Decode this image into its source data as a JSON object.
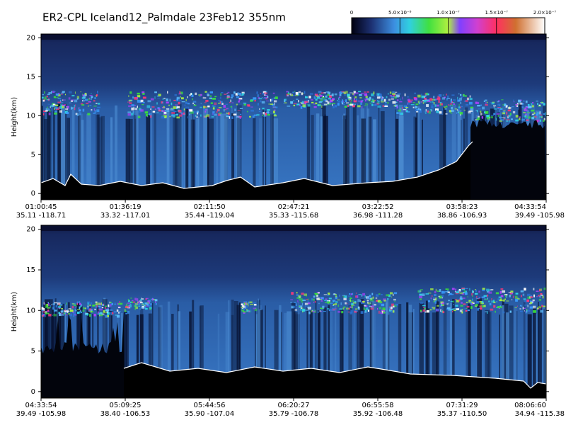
{
  "title": "ER2-CPL Iceland12_Palmdale 23Feb12 355nm",
  "colorbar": {
    "lim": [
      0,
      2e-07
    ],
    "ticks": [
      0,
      {
        "value": 5e-08,
        "label": "5.0×10⁻⁸"
      },
      {
        "value": 1e-07,
        "label": "1.0×10⁻⁷"
      },
      {
        "value": 1.5e-07,
        "label": "1.5×10⁻⁷"
      },
      {
        "value": 2e-07,
        "label": "2.0×10⁻⁷"
      }
    ]
  },
  "chart_data": [
    {
      "type": "lidar-curtain",
      "y_label": "Height(km)",
      "ylim": [
        -0.8,
        20.5
      ],
      "yticks": [
        0,
        5,
        10,
        15,
        20
      ],
      "xlim": [
        3645,
        16434
      ],
      "xticks": [
        {
          "value": 3645,
          "label": "01:00:45"
        },
        {
          "value": 5779,
          "label": "01:36:19"
        },
        {
          "value": 7910,
          "label": "02:11:50"
        },
        {
          "value": 10041,
          "label": "02:47:21"
        },
        {
          "value": 12172,
          "label": "03:22:52"
        },
        {
          "value": 14303,
          "label": "03:58:23"
        },
        {
          "value": 16434,
          "label": "04:33:54"
        }
      ],
      "location_labels": [
        "35.11 -118.71",
        "33.32 -117.01",
        "35.44 -119.04",
        "35.33 -115.68",
        "36.98 -111.28",
        "38.86 -106.93",
        "39.49 -105.98"
      ]
    },
    {
      "type": "lidar-curtain",
      "y_label": "Height(km)",
      "ylim": [
        -0.8,
        20.5
      ],
      "yticks": [
        0,
        5,
        10,
        15,
        20
      ],
      "xlim": [
        16434,
        29220
      ],
      "xticks": [
        {
          "value": 16434,
          "label": "04:33:54"
        },
        {
          "value": 18565,
          "label": "05:09:25"
        },
        {
          "value": 20696,
          "label": "05:44:56"
        },
        {
          "value": 22827,
          "label": "06:20:27"
        },
        {
          "value": 24958,
          "label": "06:55:58"
        },
        {
          "value": 27089,
          "label": "07:31:29"
        },
        {
          "value": 29220,
          "label": "08:06:60"
        }
      ],
      "location_labels": [
        "39.49 -105.98",
        "38.40 -106.53",
        "35.90 -107.04",
        "35.79 -106.78",
        "35.92 -106.48",
        "35.37 -110.50",
        "34.94 -115.38"
      ]
    }
  ]
}
